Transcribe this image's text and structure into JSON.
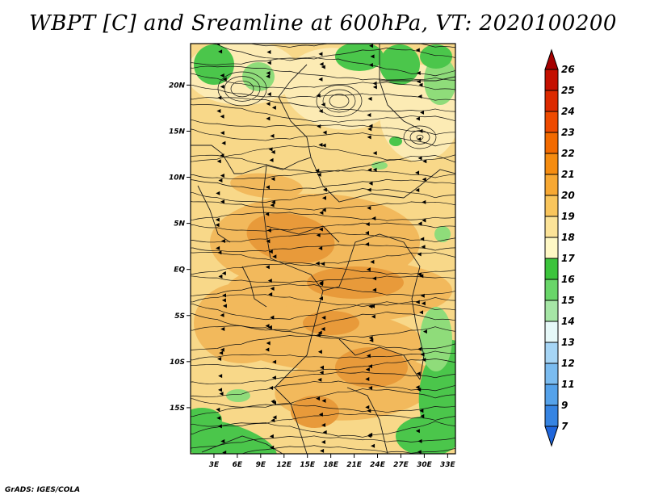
{
  "title": "WBPT [C] and Sreamline at 600hPa, VT: 2020100200",
  "footer": "GrADS: IGES/COLA",
  "map": {
    "lon_range": [
      0,
      34
    ],
    "lat_range": [
      -20,
      24.5
    ],
    "lat_ticks": [
      {
        "value": 20,
        "label": "20N"
      },
      {
        "value": 15,
        "label": "15N"
      },
      {
        "value": 10,
        "label": "10N"
      },
      {
        "value": 5,
        "label": "5N"
      },
      {
        "value": 0,
        "label": "EQ"
      },
      {
        "value": -5,
        "label": "5S"
      },
      {
        "value": -10,
        "label": "10S"
      },
      {
        "value": -15,
        "label": "15S"
      }
    ],
    "lon_ticks": [
      {
        "value": 3,
        "label": "3E"
      },
      {
        "value": 6,
        "label": "6E"
      },
      {
        "value": 9,
        "label": "9E"
      },
      {
        "value": 12,
        "label": "12E"
      },
      {
        "value": 15,
        "label": "15E"
      },
      {
        "value": 18,
        "label": "18E"
      },
      {
        "value": 21,
        "label": "21E"
      },
      {
        "value": 24,
        "label": "24E"
      },
      {
        "value": 27,
        "label": "27E"
      },
      {
        "value": 30,
        "label": "30E"
      },
      {
        "value": 33,
        "label": "33E"
      }
    ]
  },
  "colorbar": {
    "levels": [
      "26",
      "25",
      "24",
      "23",
      "22",
      "21",
      "20",
      "19",
      "18",
      "17",
      "16",
      "15",
      "14",
      "13",
      "12",
      "11",
      "9",
      "7"
    ],
    "colors": [
      "#a50000",
      "#c41000",
      "#dc2a00",
      "#ee4a00",
      "#f26a00",
      "#f58c10",
      "#f7a833",
      "#f9c55c",
      "#fce398",
      "#fff8c5",
      "#3cc43c",
      "#69d669",
      "#a6e6a6",
      "#e6f8f8",
      "#a6d5f5",
      "#7bbcf0",
      "#55a2ea",
      "#3684e2",
      "#1f66dc"
    ]
  },
  "field_colors": {
    "deep": "#e89a3a",
    "mid": "#f2b95c",
    "light": "#f8d889",
    "pale": "#fcebb4",
    "green": "#4bc64b",
    "lightgreen": "#8fdc7a"
  }
}
